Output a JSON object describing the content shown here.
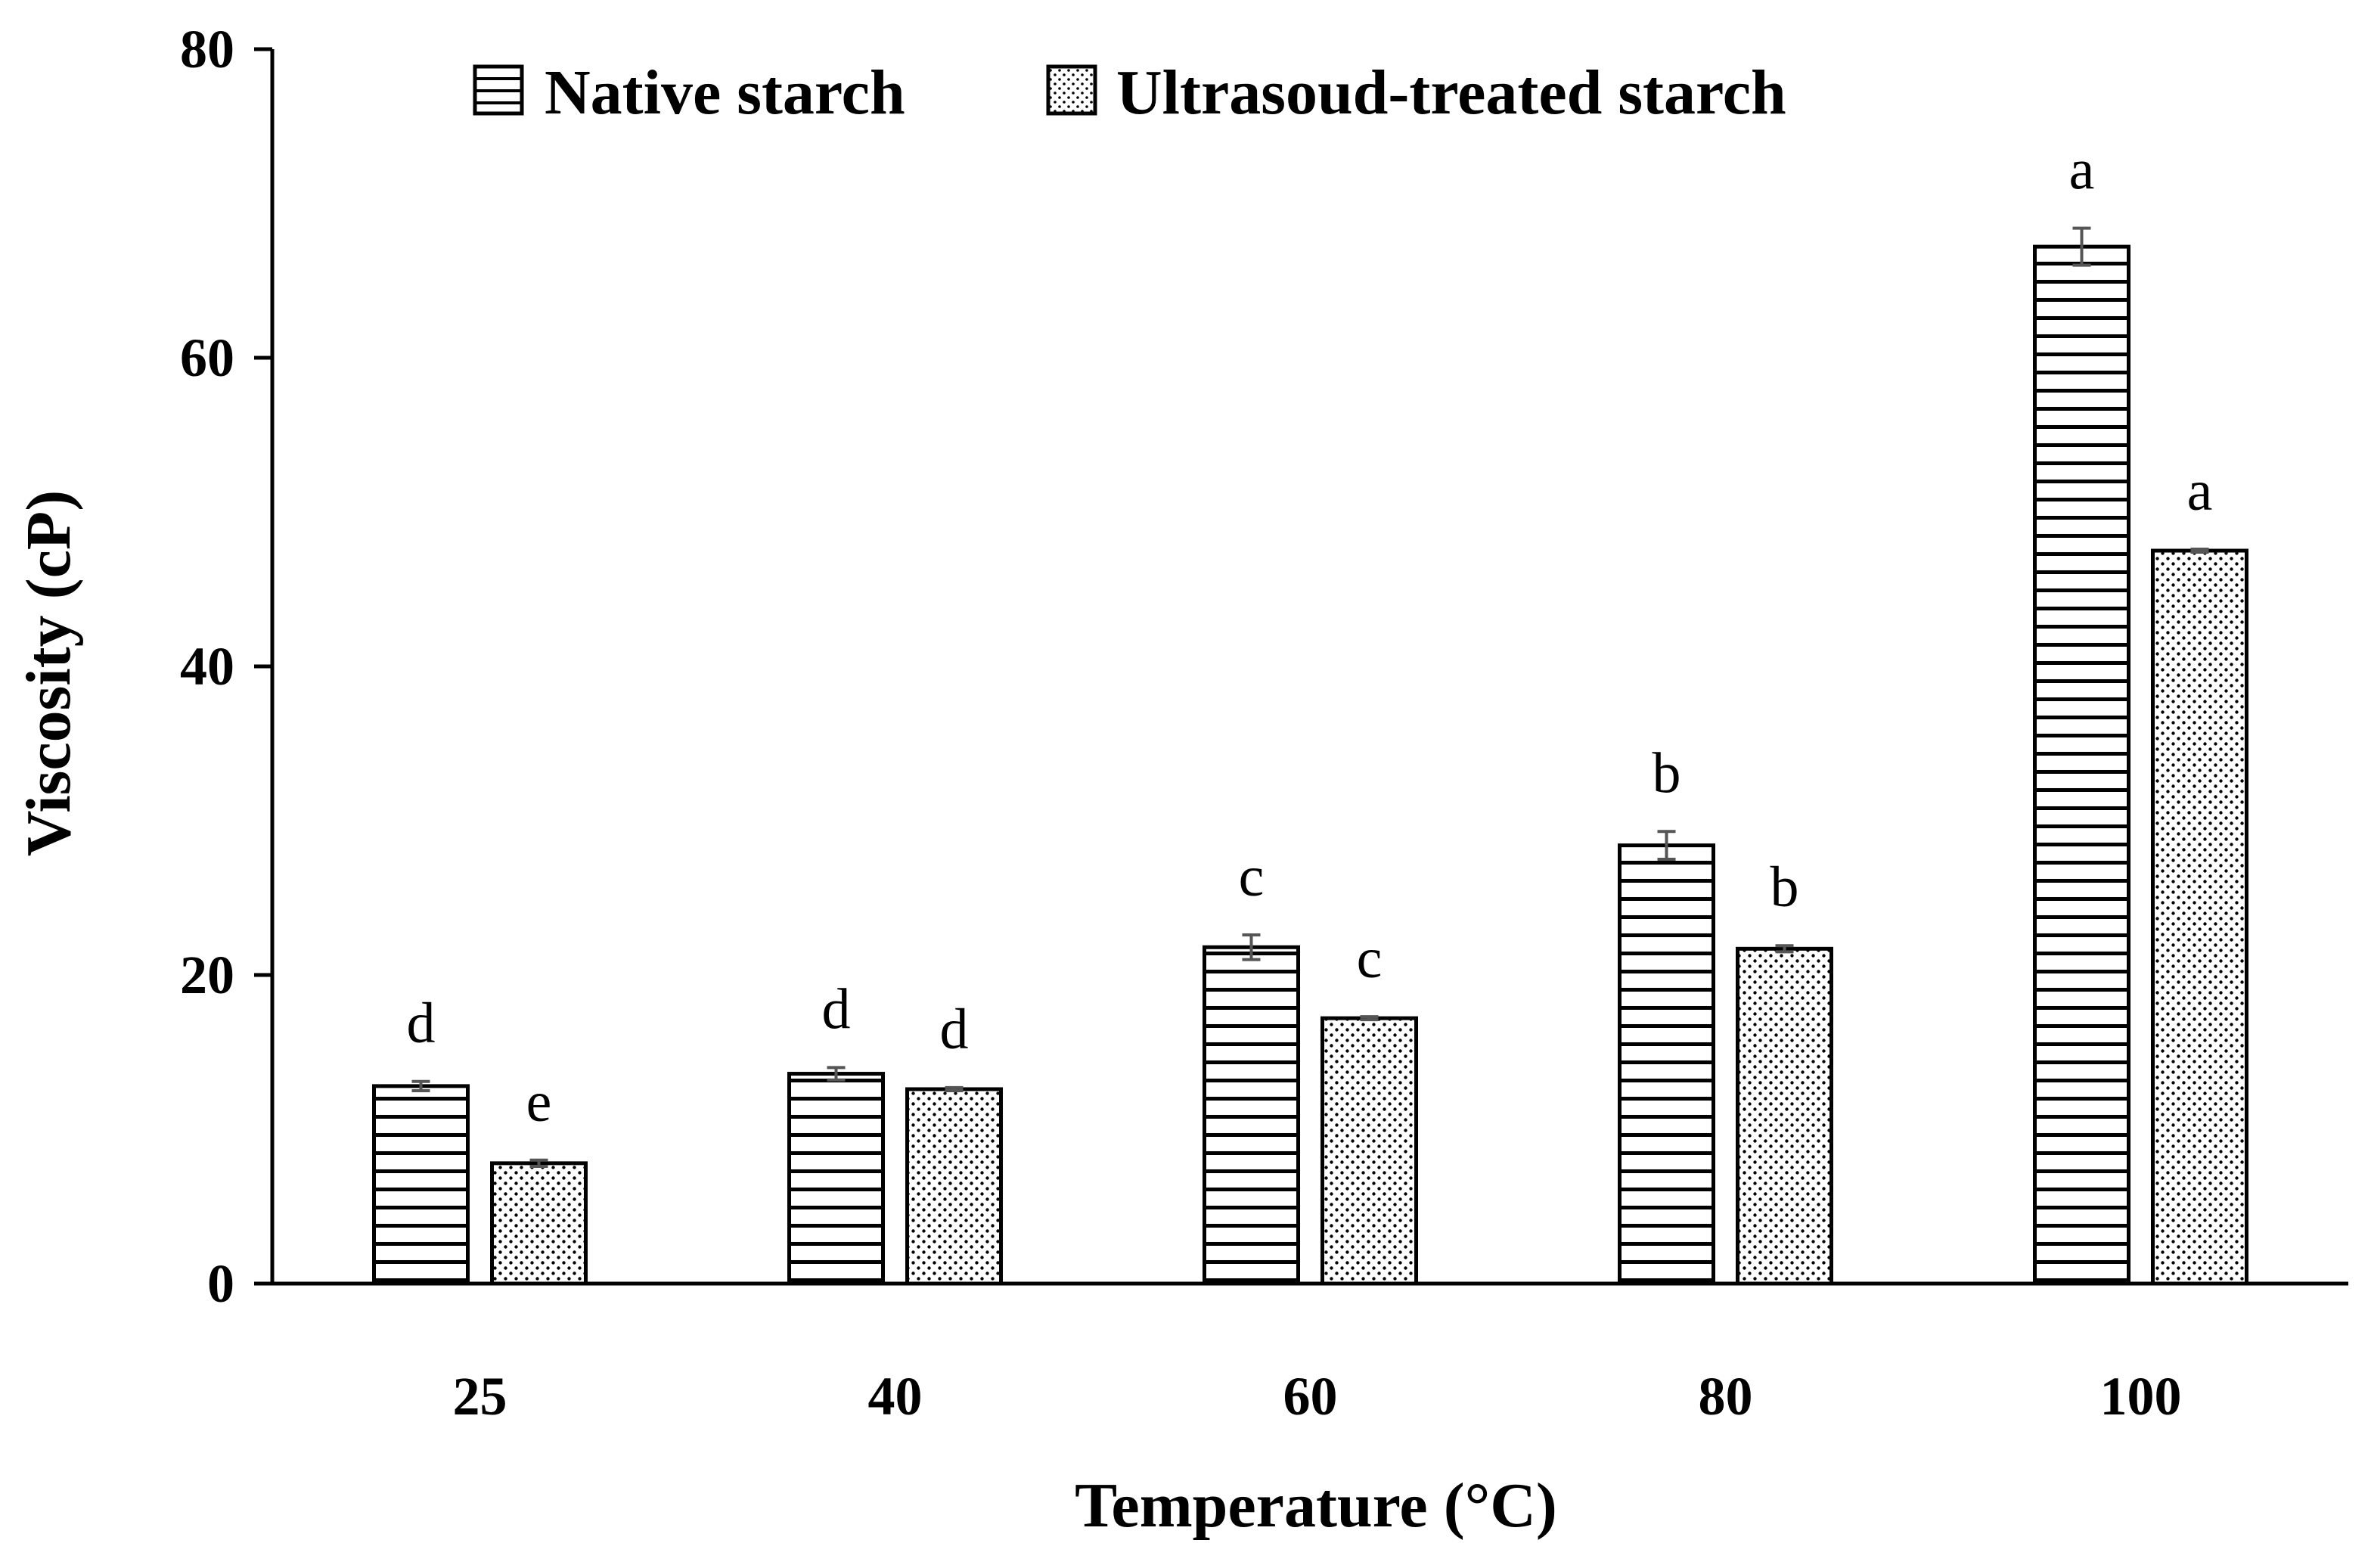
{
  "chart_data": {
    "type": "bar",
    "xlabel": "Temperature (°C)",
    "ylabel": "Viscosity (cP)",
    "ylim": [
      0,
      80
    ],
    "yticks": [
      "0",
      "20",
      "40",
      "60",
      "80"
    ],
    "categories": [
      "25",
      "40",
      "60",
      "80",
      "100"
    ],
    "grid": false,
    "legend_position": "top",
    "series": [
      {
        "name": "Native starch",
        "pattern": "horizontal-stripes",
        "values": [
          12.8,
          13.6,
          21.8,
          28.4,
          67.2
        ],
        "errors": [
          0.3,
          0.4,
          0.8,
          0.9,
          1.2
        ],
        "labels": [
          "d",
          "d",
          "c",
          "b",
          "a"
        ]
      },
      {
        "name": "Ultrasoud-treated starch",
        "pattern": "dots",
        "values": [
          7.8,
          12.6,
          17.2,
          21.7,
          47.5
        ],
        "errors": [
          0.2,
          0.1,
          0.1,
          0.2,
          0.1
        ],
        "labels": [
          "e",
          "d",
          "c",
          "b",
          "a"
        ]
      }
    ]
  }
}
